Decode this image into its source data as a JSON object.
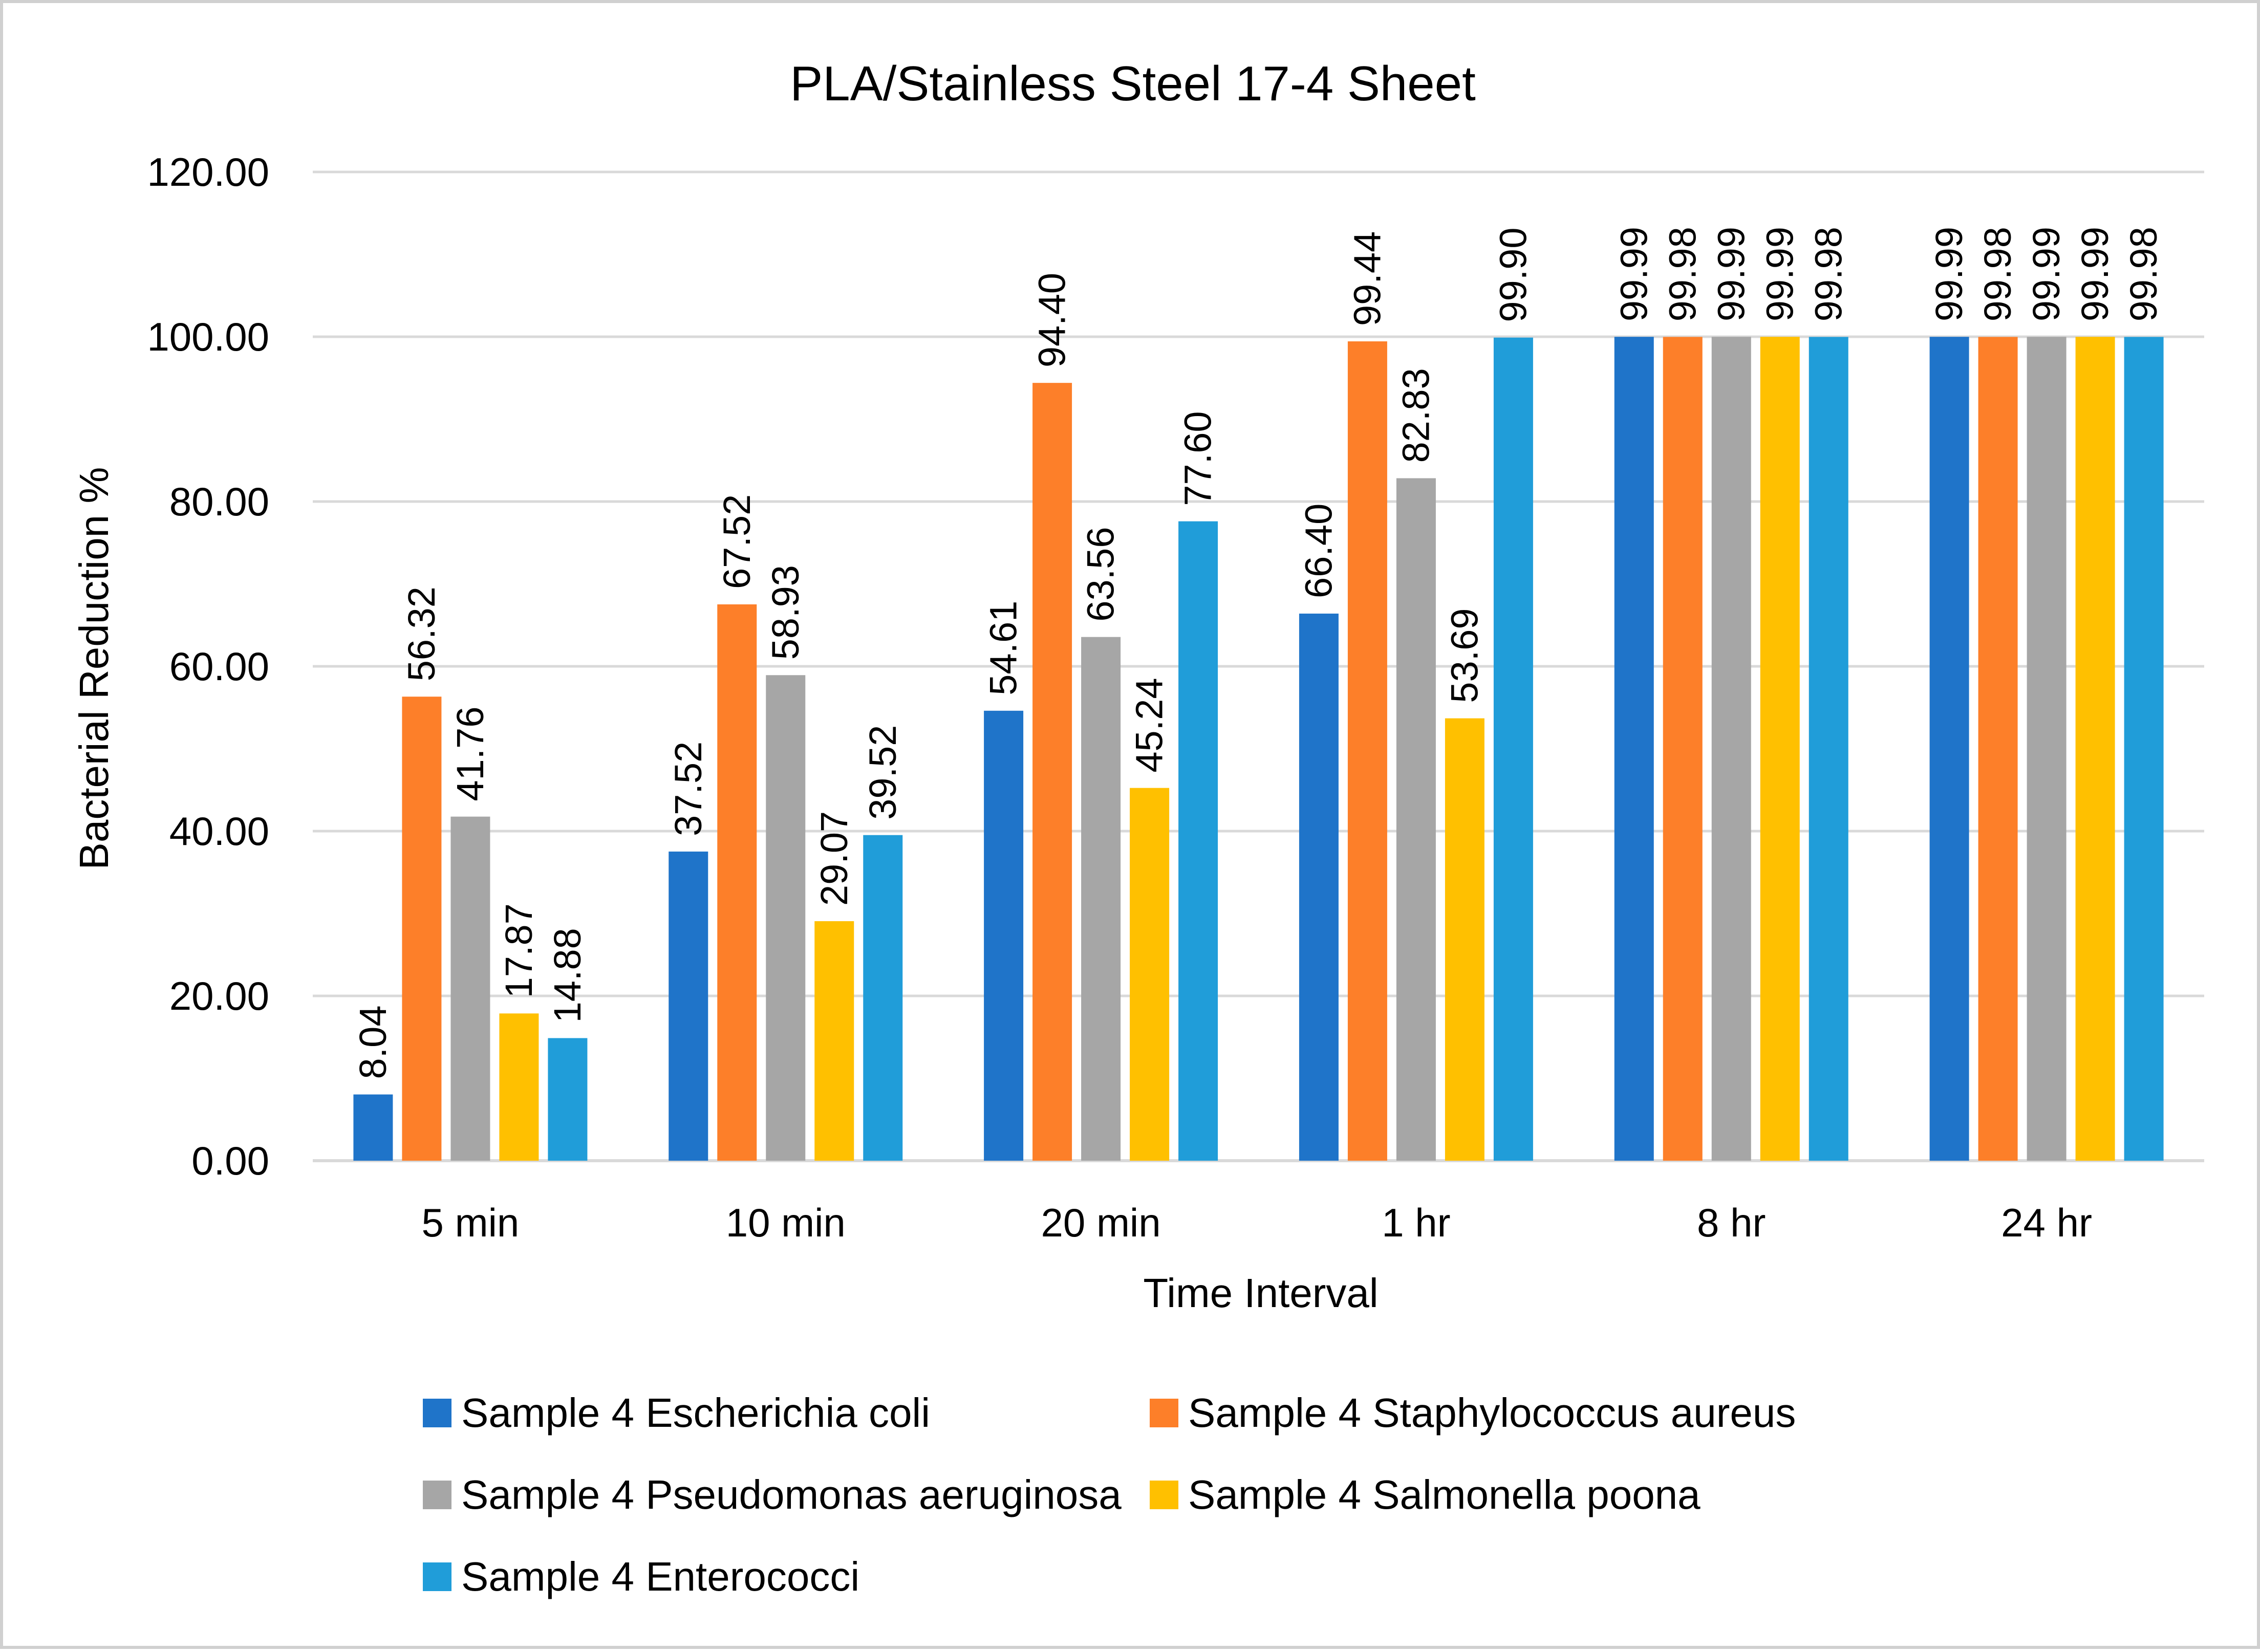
{
  "chart_data": {
    "type": "bar",
    "title": "PLA/Stainless Steel 17-4 Sheet",
    "xlabel": "Time Interval",
    "ylabel": "Bacterial Reduction %",
    "ylim": [
      0,
      120
    ],
    "yticks": [
      0,
      20,
      40,
      60,
      80,
      100,
      120
    ],
    "ytick_labels": [
      "0.00",
      "20.00",
      "40.00",
      "60.00",
      "80.00",
      "100.00",
      "120.00"
    ],
    "grid": true,
    "legend_position": "bottom",
    "categories": [
      "5 min",
      "10 min",
      "20 min",
      "1 hr",
      "8 hr",
      "24 hr"
    ],
    "series": [
      {
        "name": "Sample 4 Escherichia coli",
        "color": "#1f74c9",
        "values": [
          8.04,
          37.52,
          54.61,
          66.4,
          99.99,
          99.99
        ],
        "labels": [
          "8.04",
          "37.52",
          "54.61",
          "66.40",
          "99.99",
          "99.99"
        ]
      },
      {
        "name": "Sample 4 Staphylococcus aureus",
        "color": "#fd7f29",
        "values": [
          56.32,
          67.52,
          94.4,
          99.44,
          99.98,
          99.98
        ],
        "labels": [
          "56.32",
          "67.52",
          "94.40",
          "99.44",
          "99.98",
          "99.98"
        ]
      },
      {
        "name": "Sample 4 Pseudomonas aeruginosa",
        "color": "#a6a6a6",
        "values": [
          41.76,
          58.93,
          63.56,
          82.83,
          99.99,
          99.99
        ],
        "labels": [
          "41.76",
          "58.93",
          "63.56",
          "82.83",
          "99.99",
          "99.99"
        ]
      },
      {
        "name": "Sample 4 Salmonella poona",
        "color": "#ffc000",
        "values": [
          17.87,
          29.07,
          45.24,
          53.69,
          99.99,
          99.99
        ],
        "labels": [
          "17.87",
          "29.07",
          "45.24",
          "53.69",
          "99.99",
          "99.99"
        ]
      },
      {
        "name": "Sample 4 Enterococci",
        "color": "#209dd9",
        "values": [
          14.88,
          39.52,
          77.6,
          99.9,
          99.98,
          99.98
        ],
        "labels": [
          "14.88",
          "39.52",
          "77.60",
          "99.90",
          "99.98",
          "99.98"
        ]
      }
    ]
  }
}
